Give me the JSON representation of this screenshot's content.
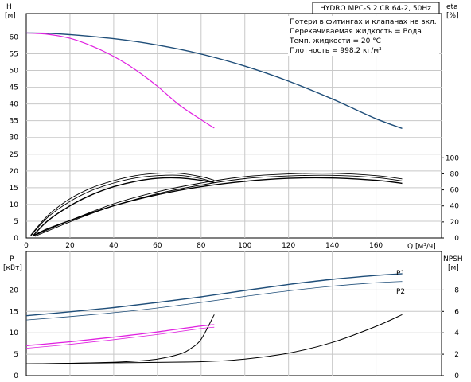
{
  "chart_data": [
    {
      "type": "line",
      "panel": "head_efficiency",
      "title": "HYDRO MPC-S 2 CR 64-2, 50Hz",
      "notes": [
        "Потери в фитингах и клапанах не вкл.",
        "Перекачиваемая жидкость = Вода",
        "Темп. жидкости = 20 °C",
        "Плотность = 998.2 кг/м³"
      ],
      "xlabel": "Q [м³/ч]",
      "xlim": [
        0,
        190
      ],
      "xticks": [
        "0",
        "20",
        "40",
        "60",
        "80",
        "100",
        "120",
        "140",
        "160"
      ],
      "ylabel_left": "H",
      "ylabel_left_unit": "[м]",
      "ylim_left": [
        0,
        67
      ],
      "yticks_left": [
        "0",
        "5",
        "10",
        "15",
        "20",
        "25",
        "30",
        "35",
        "40",
        "45",
        "50",
        "55",
        "60"
      ],
      "ylabel_right": "eta",
      "ylabel_right_unit": "[%]",
      "ylim_right": [
        0,
        280
      ],
      "yticks_right": [
        "0",
        "20",
        "40",
        "60",
        "80",
        "100"
      ],
      "grid": true,
      "series": [
        {
          "axis": "left",
          "color": "#1f4e79",
          "width": 1.4,
          "x": [
            0,
            10,
            20,
            40,
            60,
            80,
            100,
            120,
            140,
            160,
            172
          ],
          "y": [
            61.2,
            61.1,
            60.7,
            59.5,
            57.6,
            54.9,
            51.3,
            46.8,
            41.5,
            35.6,
            32.7
          ]
        },
        {
          "axis": "left",
          "color": "#e020e0",
          "width": 1.2,
          "x": [
            0,
            10,
            20,
            30,
            40,
            50,
            60,
            70,
            80,
            86
          ],
          "y": [
            61.2,
            60.8,
            59.6,
            57.3,
            54.2,
            50.2,
            45.3,
            39.7,
            35.3,
            32.8
          ]
        },
        {
          "axis": "left",
          "color": "#000000",
          "width": 0.9,
          "x": [
            2,
            10,
            20,
            30,
            40,
            50,
            60,
            70,
            80,
            86
          ],
          "y": [
            0.8,
            6.8,
            11.7,
            15.0,
            17.1,
            18.6,
            19.3,
            19.3,
            18.3,
            17.2
          ]
        },
        {
          "axis": "left",
          "color": "#000000",
          "width": 0.9,
          "x": [
            2,
            10,
            20,
            30,
            40,
            50,
            60,
            70,
            80,
            86
          ],
          "y": [
            0.6,
            6.3,
            10.9,
            14.2,
            16.4,
            17.9,
            18.6,
            18.7,
            17.7,
            16.6
          ]
        },
        {
          "axis": "left",
          "color": "#000000",
          "width": 1.4,
          "x": [
            3,
            10,
            20,
            30,
            40,
            50,
            60,
            70,
            80,
            86
          ],
          "y": [
            0.6,
            5.2,
            9.6,
            12.9,
            15.3,
            16.9,
            17.8,
            17.9,
            17.2,
            16.5
          ]
        },
        {
          "axis": "left",
          "color": "#000000",
          "width": 0.9,
          "x": [
            4,
            20,
            40,
            60,
            80,
            100,
            120,
            140,
            160,
            172
          ],
          "y": [
            0.8,
            5.2,
            10.2,
            13.8,
            16.4,
            18.3,
            19.1,
            19.3,
            18.6,
            17.6
          ]
        },
        {
          "axis": "left",
          "color": "#000000",
          "width": 0.9,
          "x": [
            4,
            20,
            40,
            60,
            80,
            100,
            120,
            140,
            160,
            172
          ],
          "y": [
            0.5,
            4.8,
            9.6,
            13.2,
            15.8,
            17.7,
            18.5,
            18.7,
            18.0,
            17.0
          ]
        },
        {
          "axis": "left",
          "color": "#000000",
          "width": 1.4,
          "x": [
            3,
            10,
            20,
            40,
            60,
            80,
            100,
            120,
            140,
            160,
            172
          ],
          "y": [
            0.6,
            2.8,
            5.2,
            9.6,
            12.9,
            15.3,
            16.9,
            17.8,
            17.9,
            17.2,
            16.3
          ]
        }
      ]
    },
    {
      "type": "line",
      "panel": "power_npsh",
      "xlim": [
        0,
        190
      ],
      "ylabel_left": "P",
      "ylabel_left_unit": "[кВт]",
      "ylim_left": [
        0,
        29
      ],
      "yticks_left": [
        "0",
        "5",
        "10",
        "15",
        "20"
      ],
      "ylabel_right": "NPSH",
      "ylabel_right_unit": "[м]",
      "ylim_right": [
        0,
        11.6
      ],
      "yticks_right": [
        "0",
        "2",
        "4",
        "6",
        "8"
      ],
      "grid": true,
      "series": [
        {
          "name": "P1",
          "axis": "left",
          "color": "#1f4e79",
          "width": 1.4,
          "x": [
            0,
            20,
            40,
            60,
            80,
            100,
            120,
            140,
            160,
            172
          ],
          "y": [
            14.0,
            14.9,
            15.9,
            17.1,
            18.4,
            19.9,
            21.3,
            22.5,
            23.4,
            23.8
          ]
        },
        {
          "name": "P2",
          "axis": "left",
          "color": "#1f4e79",
          "width": 0.8,
          "x": [
            0,
            20,
            40,
            60,
            80,
            100,
            120,
            140,
            160,
            172
          ],
          "y": [
            13.0,
            13.8,
            14.7,
            15.8,
            17.1,
            18.5,
            19.8,
            20.9,
            21.7,
            22.0
          ]
        },
        {
          "axis": "left",
          "color": "#e020e0",
          "width": 1.3,
          "x": [
            0,
            20,
            40,
            60,
            80,
            86
          ],
          "y": [
            7.0,
            7.9,
            9.0,
            10.2,
            11.6,
            11.9
          ]
        },
        {
          "axis": "left",
          "color": "#e020e0",
          "width": 0.8,
          "x": [
            0,
            20,
            40,
            60,
            80,
            86
          ],
          "y": [
            6.4,
            7.3,
            8.4,
            9.6,
            11.0,
            11.3
          ]
        },
        {
          "axis": "right",
          "color": "#000000",
          "width": 1.0,
          "x": [
            0,
            20,
            40,
            50,
            60,
            70,
            75,
            80,
            86
          ],
          "y": [
            1.1,
            1.15,
            1.25,
            1.35,
            1.55,
            2.0,
            2.5,
            3.4,
            5.7
          ]
        },
        {
          "axis": "right",
          "color": "#000000",
          "width": 1.0,
          "x": [
            0,
            40,
            80,
            100,
            120,
            140,
            160,
            172
          ],
          "y": [
            1.1,
            1.2,
            1.3,
            1.55,
            2.1,
            3.1,
            4.6,
            5.7
          ]
        }
      ]
    }
  ]
}
